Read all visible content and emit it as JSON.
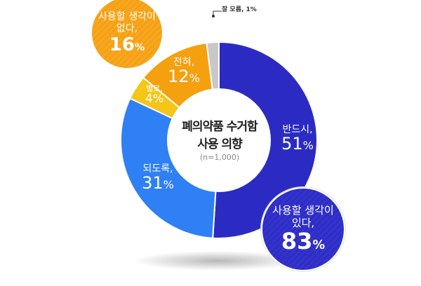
{
  "chart_data": {
    "type": "pie",
    "subtype": "donut",
    "title": "폐의약품 수거함 사용 의향",
    "subtitle": "(n=1,000)",
    "categories": [
      "반드시",
      "되도록",
      "별로",
      "전혀",
      "잘 모름"
    ],
    "values": [
      51,
      31,
      4,
      12,
      1
    ],
    "unit": "%",
    "colors": [
      "#2B2BC4",
      "#2F80F5",
      "#F5C518",
      "#F5A00F",
      "#C8C8C8"
    ],
    "groups": [
      {
        "name": "사용할 생각이 있다",
        "value": 83,
        "members": [
          "반드시",
          "되도록"
        ],
        "color": "#2D2DC6"
      },
      {
        "name": "사용할 생각이 없다",
        "value": 16,
        "members": [
          "별로",
          "전혀"
        ],
        "color": "#F5A014"
      }
    ]
  },
  "center": {
    "line1": "폐의약품 수거함",
    "line2": "사용 의향",
    "sample": "(n=1,000)"
  },
  "labels": {
    "always": {
      "name": "반드시,",
      "pct": "51",
      "unit": "%"
    },
    "preferably": {
      "name": "되도록,",
      "pct": "31",
      "unit": "%"
    },
    "not_really": {
      "name": "별로,",
      "pct": "4",
      "unit": "%"
    },
    "never": {
      "name": "전혀,",
      "pct": "12",
      "unit": "%"
    },
    "unknown": "잘 모름, 1%"
  },
  "bubbles": {
    "no": {
      "line1": "사용할 생각이",
      "line2": "없다,",
      "pct": "16",
      "unit": "%"
    },
    "yes": {
      "line1": "사용할 생각이",
      "line2": "있다,",
      "pct": "83",
      "unit": "%"
    }
  }
}
